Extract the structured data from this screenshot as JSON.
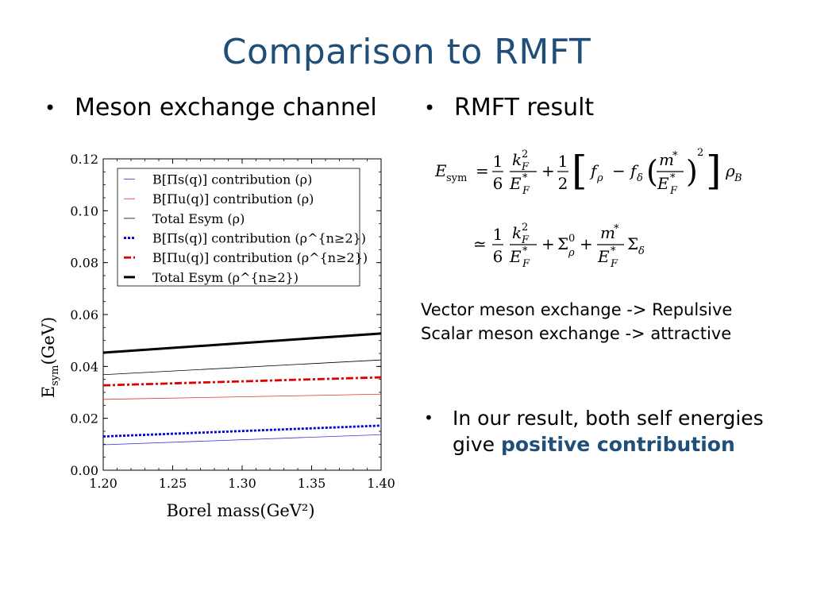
{
  "slide": {
    "title": "Comparison to RMFT",
    "bullet_glyph": "•",
    "left_bullet": "Meson exchange channel",
    "right_bullet": "RMFT result",
    "notes": [
      "Vector meson exchange -> Repulsive",
      "Scalar meson exchange -> attractive"
    ],
    "conclusion_line1": "In our result, both self energies",
    "conclusion_line2_prefix": "give ",
    "conclusion_highlight": "positive contribution",
    "highlight_color": "#1f4e79"
  },
  "formula": {
    "lhs": "E",
    "lhs_sub": "sym",
    "eq": "=",
    "approx": "≃",
    "one": "1",
    "six": "6",
    "two": "2",
    "plus": "+",
    "minus": "−",
    "kF": "k",
    "F": "F",
    "EF": "E",
    "star": "*",
    "sq": "2",
    "f": "f",
    "rho": "ρ",
    "delta": "δ",
    "m": "m",
    "B": "B",
    "Sigma": "Σ",
    "zero": "0",
    "lbracket": "[",
    "rbracket": "]",
    "lparen": "(",
    "rparen": ")"
  },
  "chart_data": {
    "type": "line",
    "xlabel": "Borel mass(GeV²)",
    "ylabel": "E_sym(GeV)",
    "xlim": [
      1.2,
      1.4
    ],
    "ylim": [
      0.0,
      0.12
    ],
    "xticks": [
      "1.20",
      "1.25",
      "1.30",
      "1.35",
      "1.40"
    ],
    "yticks": [
      "0.00",
      "0.02",
      "0.04",
      "0.06",
      "0.08",
      "0.10",
      "0.12"
    ],
    "legend_position": "top",
    "series": [
      {
        "name": "B[Πs(q)] contribution (ρ)",
        "x": [
          1.2,
          1.4
        ],
        "y": [
          0.0098,
          0.0137
        ],
        "color": "#3333cc",
        "width": 0.8,
        "dash": ""
      },
      {
        "name": "B[Πu(q)] contribution (ρ)",
        "x": [
          1.2,
          1.4
        ],
        "y": [
          0.0273,
          0.0293
        ],
        "color": "#e03030",
        "width": 0.8,
        "dash": ""
      },
      {
        "name": "Total Esym (ρ)",
        "x": [
          1.2,
          1.4
        ],
        "y": [
          0.0368,
          0.0425
        ],
        "color": "#000000",
        "width": 0.8,
        "dash": ""
      },
      {
        "name": "B[Πs(q)] contribution (ρ^{n≥2})",
        "x": [
          1.2,
          1.4
        ],
        "y": [
          0.013,
          0.0172
        ],
        "color": "#0000dd",
        "width": 2.8,
        "dash": "3,2"
      },
      {
        "name": "B[Πu(q)] contribution (ρ^{n≥2})",
        "x": [
          1.2,
          1.4
        ],
        "y": [
          0.0327,
          0.0358
        ],
        "color": "#e00000",
        "width": 2.8,
        "dash": "9,3,3,3"
      },
      {
        "name": "Total Esym (ρ^{n≥2})",
        "x": [
          1.2,
          1.4
        ],
        "y": [
          0.0453,
          0.0527
        ],
        "color": "#000000",
        "width": 3.0,
        "dash": ""
      }
    ]
  }
}
